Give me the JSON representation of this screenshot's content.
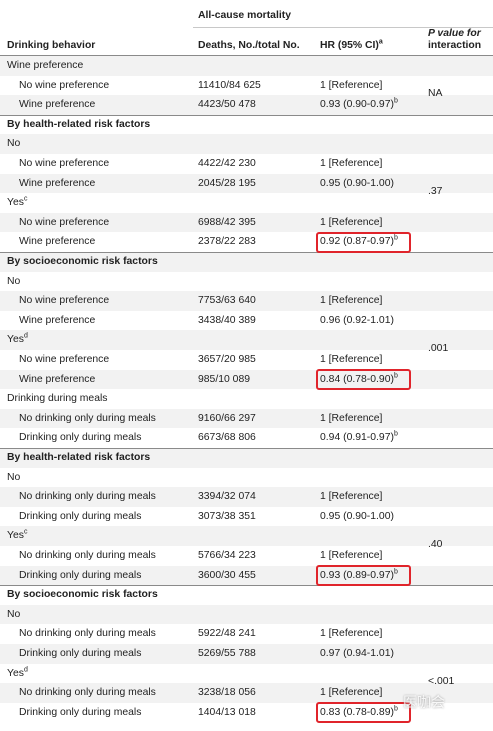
{
  "header": {
    "group_label": "All-cause mortality",
    "col1": "Drinking behavior",
    "col2": "Deaths, No./total No.",
    "col3": "HR (95% CI)",
    "col3_sup": "a",
    "col4_line1": "P value for",
    "col4_line2": "interaction"
  },
  "rows": [
    {
      "label": "Wine preference",
      "deaths": "",
      "hr": "",
      "sup": "",
      "indent": false,
      "section": false
    },
    {
      "label": "No wine preference",
      "deaths": "11410/84 625",
      "hr": "1 [Reference]",
      "sup": "",
      "indent": true,
      "section": false
    },
    {
      "label": "Wine preference",
      "deaths": "4423/50 478",
      "hr": "0.93 (0.90-0.97)",
      "sup": "b",
      "indent": true,
      "section": false
    },
    {
      "label": "By health-related risk factors",
      "deaths": "",
      "hr": "",
      "sup": "",
      "indent": false,
      "section": true
    },
    {
      "label": "No",
      "deaths": "",
      "hr": "",
      "sup": "",
      "indent": false,
      "section": false
    },
    {
      "label": "No wine preference",
      "deaths": "4422/42 230",
      "hr": "1 [Reference]",
      "sup": "",
      "indent": true,
      "section": false
    },
    {
      "label": "Wine preference",
      "deaths": "2045/28 195",
      "hr": "0.95 (0.90-1.00)",
      "sup": "",
      "indent": true,
      "section": false
    },
    {
      "label": "Yes",
      "labelsup": "c",
      "deaths": "",
      "hr": "",
      "sup": "",
      "indent": false,
      "section": false
    },
    {
      "label": "No wine preference",
      "deaths": "6988/42 395",
      "hr": "1 [Reference]",
      "sup": "",
      "indent": true,
      "section": false
    },
    {
      "label": "Wine preference",
      "deaths": "2378/22 283",
      "hr": "0.92 (0.87-0.97)",
      "sup": "b",
      "indent": true,
      "section": false
    },
    {
      "label": "By socioeconomic risk factors",
      "deaths": "",
      "hr": "",
      "sup": "",
      "indent": false,
      "section": true
    },
    {
      "label": "No",
      "deaths": "",
      "hr": "",
      "sup": "",
      "indent": false,
      "section": false
    },
    {
      "label": "No wine preference",
      "deaths": "7753/63 640",
      "hr": "1 [Reference]",
      "sup": "",
      "indent": true,
      "section": false
    },
    {
      "label": "Wine preference",
      "deaths": "3438/40 389",
      "hr": "0.96 (0.92-1.01)",
      "sup": "",
      "indent": true,
      "section": false
    },
    {
      "label": "Yes",
      "labelsup": "d",
      "deaths": "",
      "hr": "",
      "sup": "",
      "indent": false,
      "section": false
    },
    {
      "label": "No wine preference",
      "deaths": "3657/20 985",
      "hr": "1 [Reference]",
      "sup": "",
      "indent": true,
      "section": false
    },
    {
      "label": "Wine preference",
      "deaths": "985/10 089",
      "hr": "0.84 (0.78-0.90)",
      "sup": "b",
      "indent": true,
      "section": false
    },
    {
      "label": "Drinking during meals",
      "deaths": "",
      "hr": "",
      "sup": "",
      "indent": false,
      "section": false
    },
    {
      "label": "No drinking only during meals",
      "deaths": "9160/66 297",
      "hr": "1 [Reference]",
      "sup": "",
      "indent": true,
      "section": false
    },
    {
      "label": "Drinking only during meals",
      "deaths": "6673/68 806",
      "hr": "0.94 (0.91-0.97)",
      "sup": "b",
      "indent": true,
      "section": false
    },
    {
      "label": "By health-related risk factors",
      "deaths": "",
      "hr": "",
      "sup": "",
      "indent": false,
      "section": true
    },
    {
      "label": "No",
      "deaths": "",
      "hr": "",
      "sup": "",
      "indent": false,
      "section": false
    },
    {
      "label": "No drinking only during meals",
      "deaths": "3394/32 074",
      "hr": "1 [Reference]",
      "sup": "",
      "indent": true,
      "section": false
    },
    {
      "label": "Drinking only during meals",
      "deaths": "3073/38 351",
      "hr": "0.95 (0.90-1.00)",
      "sup": "",
      "indent": true,
      "section": false
    },
    {
      "label": "Yes",
      "labelsup": "c",
      "deaths": "",
      "hr": "",
      "sup": "",
      "indent": false,
      "section": false
    },
    {
      "label": "No drinking only during meals",
      "deaths": "5766/34 223",
      "hr": "1 [Reference]",
      "sup": "",
      "indent": true,
      "section": false
    },
    {
      "label": "Drinking only during meals",
      "deaths": "3600/30 455",
      "hr": "0.93 (0.89-0.97)",
      "sup": "b",
      "indent": true,
      "section": false
    },
    {
      "label": "By socioeconomic risk factors",
      "deaths": "",
      "hr": "",
      "sup": "",
      "indent": false,
      "section": true
    },
    {
      "label": "No",
      "deaths": "",
      "hr": "",
      "sup": "",
      "indent": false,
      "section": false
    },
    {
      "label": "No drinking only during meals",
      "deaths": "5922/48 241",
      "hr": "1 [Reference]",
      "sup": "",
      "indent": true,
      "section": false
    },
    {
      "label": "Drinking only during meals",
      "deaths": "5269/55 788",
      "hr": "0.97 (0.94-1.01)",
      "sup": "",
      "indent": true,
      "section": false
    },
    {
      "label": "Yes",
      "labelsup": "d",
      "deaths": "",
      "hr": "",
      "sup": "",
      "indent": false,
      "section": false
    },
    {
      "label": "No drinking only during meals",
      "deaths": "3238/18 056",
      "hr": "1 [Reference]",
      "sup": "",
      "indent": true,
      "section": false
    },
    {
      "label": "Drinking only during meals",
      "deaths": "1404/13 018",
      "hr": "0.83 (0.78-0.89)",
      "sup": "b",
      "indent": true,
      "section": false
    }
  ],
  "p_values": [
    {
      "text": "NA",
      "row": 1.5
    },
    {
      "text": ".37",
      "row": 6.5
    },
    {
      "text": ".001",
      "row": 14.5
    },
    {
      "text": ".40",
      "row": 24.5
    },
    {
      "text": "<.001",
      "row": 31.5
    }
  ],
  "highlighted_rows": [
    9,
    16,
    26,
    33
  ],
  "colors": {
    "highlight": "#e0242b",
    "shade": "#f2f2f2",
    "rule": "#8a8a8a"
  },
  "watermark": "医咖会"
}
